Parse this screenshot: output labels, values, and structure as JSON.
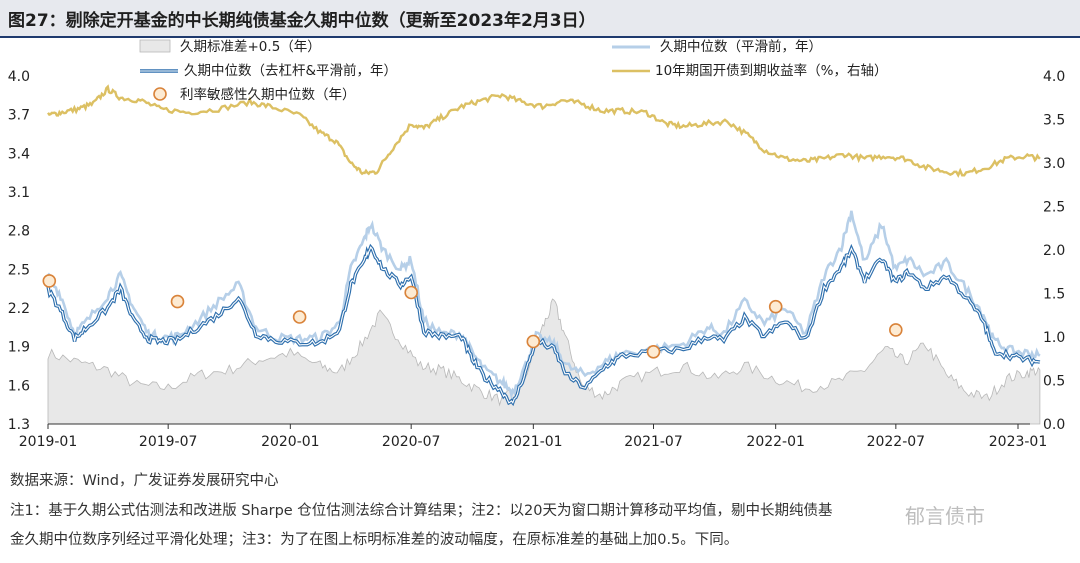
{
  "title": "图27：剔除定开基金的中长期纯债基金久期中位数（更新至2023年2月3日）",
  "footer": {
    "source": "数据来源：Wind，广发证券发展研究中心",
    "note_line1": "注1：基于久期公式估测法和改进版 Sharpe 仓位估测法综合计算结果；注2：以20天为窗口期计算移动平均值，剔中长期纯债基",
    "note_line2": "金久期中位数序列经过平滑化处理；注3：为了在图上标明标准差的波动幅度，在原标准差的基础上加0.5。下同。"
  },
  "watermark": "郁言债市",
  "colors": {
    "std_fill": "#e8e8e8",
    "std_stroke": "#b8b8b8",
    "unsmoothed": "#b6cfe8",
    "smoothed": "#2e6fad",
    "yield": "#dcc063",
    "sensitivity_stroke": "#d9833a",
    "sensitivity_fill": "#fdebd3",
    "title_band": "#e7e9ee",
    "title_rule": "#1f3a6e"
  },
  "chart_data": {
    "type": "line",
    "x_ticks": [
      "2019-01",
      "2019-07",
      "2020-01",
      "2020-07",
      "2021-01",
      "2021-07",
      "2022-01",
      "2022-07",
      "2023-01"
    ],
    "x_range": [
      "2019-01-01",
      "2023-02-03"
    ],
    "y_left": {
      "min": 1.3,
      "max": 4.0,
      "ticks": [
        "1.3",
        "1.6",
        "1.9",
        "2.2",
        "2.5",
        "2.8",
        "3.1",
        "3.4",
        "3.7",
        "4.0"
      ]
    },
    "y_right": {
      "min": 0.0,
      "max": 4.0,
      "ticks": [
        "0.0",
        "0.5",
        "1.0",
        "1.5",
        "2.0",
        "2.5",
        "3.0",
        "3.5",
        "4.0"
      ]
    },
    "legend": [
      {
        "key": "std",
        "label": "久期标准差+0.5（年）"
      },
      {
        "key": "unsmoothed",
        "label": "久期中位数（平滑前，年）"
      },
      {
        "key": "smoothed",
        "label": "久期中位数（去杠杆&平滑前，年）"
      },
      {
        "key": "yield",
        "label": "10年期国开债到期收益率（%，右轴）"
      },
      {
        "key": "sensitivity",
        "label": "利率敏感性久期中位数（年）"
      }
    ],
    "series": [
      {
        "key": "std",
        "axis": "left",
        "points": [
          [
            "2019-01-01",
            1.85
          ],
          [
            "2019-02-15",
            1.78
          ],
          [
            "2019-04-01",
            1.72
          ],
          [
            "2019-05-15",
            1.6
          ],
          [
            "2019-07-01",
            1.58
          ],
          [
            "2019-08-15",
            1.68
          ],
          [
            "2019-10-01",
            1.72
          ],
          [
            "2019-11-15",
            1.8
          ],
          [
            "2020-01-01",
            1.85
          ],
          [
            "2020-02-15",
            1.75
          ],
          [
            "2020-03-15",
            1.7
          ],
          [
            "2020-04-15",
            1.9
          ],
          [
            "2020-05-15",
            2.15
          ],
          [
            "2020-06-15",
            1.95
          ],
          [
            "2020-07-15",
            1.75
          ],
          [
            "2020-08-15",
            1.72
          ],
          [
            "2020-09-15",
            1.64
          ],
          [
            "2020-10-15",
            1.55
          ],
          [
            "2020-11-15",
            1.48
          ],
          [
            "2020-12-15",
            1.6
          ],
          [
            "2021-01-15",
            2.05
          ],
          [
            "2021-02-01",
            2.25
          ],
          [
            "2021-02-20",
            1.95
          ],
          [
            "2021-03-15",
            1.6
          ],
          [
            "2021-04-15",
            1.52
          ],
          [
            "2021-05-15",
            1.62
          ],
          [
            "2021-07-01",
            1.7
          ],
          [
            "2021-08-15",
            1.75
          ],
          [
            "2021-10-01",
            1.65
          ],
          [
            "2021-11-15",
            1.75
          ],
          [
            "2022-01-01",
            1.65
          ],
          [
            "2022-02-15",
            1.58
          ],
          [
            "2022-04-01",
            1.62
          ],
          [
            "2022-05-15",
            1.72
          ],
          [
            "2022-06-15",
            1.88
          ],
          [
            "2022-07-15",
            1.78
          ],
          [
            "2022-08-15",
            1.92
          ],
          [
            "2022-09-15",
            1.68
          ],
          [
            "2022-10-15",
            1.55
          ],
          [
            "2022-11-15",
            1.5
          ],
          [
            "2022-12-15",
            1.65
          ],
          [
            "2023-01-15",
            1.7
          ],
          [
            "2023-02-03",
            1.72
          ]
        ]
      },
      {
        "key": "unsmoothed",
        "axis": "left",
        "points": [
          [
            "2019-01-01",
            2.45
          ],
          [
            "2019-01-20",
            2.3
          ],
          [
            "2019-02-10",
            2.0
          ],
          [
            "2019-03-01",
            2.1
          ],
          [
            "2019-04-01",
            2.3
          ],
          [
            "2019-04-20",
            2.45
          ],
          [
            "2019-05-10",
            2.2
          ],
          [
            "2019-06-01",
            2.0
          ],
          [
            "2019-06-20",
            1.97
          ],
          [
            "2019-07-15",
            1.98
          ],
          [
            "2019-08-15",
            2.1
          ],
          [
            "2019-09-15",
            2.25
          ],
          [
            "2019-10-15",
            2.38
          ],
          [
            "2019-11-10",
            2.05
          ],
          [
            "2019-12-10",
            1.97
          ],
          [
            "2020-01-15",
            1.96
          ],
          [
            "2020-02-15",
            1.97
          ],
          [
            "2020-03-15",
            2.08
          ],
          [
            "2020-04-01",
            2.5
          ],
          [
            "2020-04-20",
            2.72
          ],
          [
            "2020-05-01",
            2.85
          ],
          [
            "2020-05-20",
            2.65
          ],
          [
            "2020-06-15",
            2.5
          ],
          [
            "2020-07-01",
            2.58
          ],
          [
            "2020-07-20",
            2.1
          ],
          [
            "2020-08-15",
            2.0
          ],
          [
            "2020-09-15",
            2.0
          ],
          [
            "2020-10-01",
            1.85
          ],
          [
            "2020-10-20",
            1.72
          ],
          [
            "2020-11-15",
            1.62
          ],
          [
            "2020-12-01",
            1.55
          ],
          [
            "2020-12-20",
            1.75
          ],
          [
            "2021-01-05",
            1.98
          ],
          [
            "2021-02-01",
            1.92
          ],
          [
            "2021-02-20",
            1.75
          ],
          [
            "2021-03-20",
            1.68
          ],
          [
            "2021-04-20",
            1.78
          ],
          [
            "2021-05-15",
            1.85
          ],
          [
            "2021-07-01",
            1.88
          ],
          [
            "2021-08-15",
            1.92
          ],
          [
            "2021-09-20",
            2.05
          ],
          [
            "2021-10-15",
            2.0
          ],
          [
            "2021-11-15",
            2.25
          ],
          [
            "2021-12-15",
            2.08
          ],
          [
            "2022-01-15",
            2.2
          ],
          [
            "2022-02-15",
            2.0
          ],
          [
            "2022-03-15",
            2.45
          ],
          [
            "2022-04-10",
            2.68
          ],
          [
            "2022-04-25",
            2.95
          ],
          [
            "2022-05-15",
            2.55
          ],
          [
            "2022-06-10",
            2.85
          ],
          [
            "2022-06-30",
            2.5
          ],
          [
            "2022-07-20",
            2.58
          ],
          [
            "2022-08-15",
            2.45
          ],
          [
            "2022-09-15",
            2.55
          ],
          [
            "2022-10-15",
            2.35
          ],
          [
            "2022-11-10",
            2.15
          ],
          [
            "2022-11-25",
            1.95
          ],
          [
            "2022-12-20",
            1.87
          ],
          [
            "2023-01-15",
            1.85
          ],
          [
            "2023-02-03",
            1.83
          ]
        ]
      },
      {
        "key": "smoothed",
        "axis": "left",
        "points": [
          [
            "2019-01-01",
            2.35
          ],
          [
            "2019-01-20",
            2.18
          ],
          [
            "2019-02-10",
            1.96
          ],
          [
            "2019-03-01",
            2.05
          ],
          [
            "2019-04-01",
            2.2
          ],
          [
            "2019-04-20",
            2.35
          ],
          [
            "2019-05-10",
            2.1
          ],
          [
            "2019-06-01",
            1.96
          ],
          [
            "2019-06-20",
            1.94
          ],
          [
            "2019-07-15",
            1.95
          ],
          [
            "2019-08-15",
            2.05
          ],
          [
            "2019-09-15",
            2.15
          ],
          [
            "2019-10-15",
            2.28
          ],
          [
            "2019-11-10",
            2.0
          ],
          [
            "2019-12-10",
            1.95
          ],
          [
            "2020-01-15",
            1.93
          ],
          [
            "2020-02-15",
            1.93
          ],
          [
            "2020-03-15",
            2.03
          ],
          [
            "2020-04-01",
            2.38
          ],
          [
            "2020-04-20",
            2.55
          ],
          [
            "2020-05-01",
            2.68
          ],
          [
            "2020-05-20",
            2.5
          ],
          [
            "2020-06-15",
            2.38
          ],
          [
            "2020-07-01",
            2.45
          ],
          [
            "2020-07-20",
            2.02
          ],
          [
            "2020-08-15",
            1.98
          ],
          [
            "2020-09-15",
            1.98
          ],
          [
            "2020-10-01",
            1.8
          ],
          [
            "2020-10-20",
            1.66
          ],
          [
            "2020-11-15",
            1.55
          ],
          [
            "2020-12-01",
            1.45
          ],
          [
            "2020-12-20",
            1.7
          ],
          [
            "2021-01-05",
            1.95
          ],
          [
            "2021-02-01",
            1.88
          ],
          [
            "2021-02-20",
            1.68
          ],
          [
            "2021-03-20",
            1.58
          ],
          [
            "2021-04-20",
            1.75
          ],
          [
            "2021-05-15",
            1.83
          ],
          [
            "2021-07-01",
            1.86
          ],
          [
            "2021-08-15",
            1.88
          ],
          [
            "2021-09-20",
            1.98
          ],
          [
            "2021-10-15",
            1.95
          ],
          [
            "2021-11-15",
            2.12
          ],
          [
            "2021-12-15",
            1.98
          ],
          [
            "2022-01-15",
            2.1
          ],
          [
            "2022-02-15",
            1.95
          ],
          [
            "2022-03-15",
            2.35
          ],
          [
            "2022-04-10",
            2.52
          ],
          [
            "2022-04-25",
            2.65
          ],
          [
            "2022-05-15",
            2.42
          ],
          [
            "2022-06-10",
            2.58
          ],
          [
            "2022-06-30",
            2.4
          ],
          [
            "2022-07-20",
            2.48
          ],
          [
            "2022-08-15",
            2.35
          ],
          [
            "2022-09-15",
            2.45
          ],
          [
            "2022-10-15",
            2.28
          ],
          [
            "2022-11-10",
            2.1
          ],
          [
            "2022-11-25",
            1.87
          ],
          [
            "2022-12-20",
            1.83
          ],
          [
            "2023-01-15",
            1.8
          ],
          [
            "2023-02-03",
            1.78
          ]
        ]
      },
      {
        "key": "yield",
        "axis": "right",
        "points": [
          [
            "2019-01-01",
            3.55
          ],
          [
            "2019-01-20",
            3.58
          ],
          [
            "2019-02-15",
            3.62
          ],
          [
            "2019-03-10",
            3.68
          ],
          [
            "2019-04-01",
            3.85
          ],
          [
            "2019-04-20",
            3.75
          ],
          [
            "2019-05-20",
            3.72
          ],
          [
            "2019-06-20",
            3.62
          ],
          [
            "2019-08-01",
            3.58
          ],
          [
            "2019-09-15",
            3.62
          ],
          [
            "2019-11-01",
            3.7
          ],
          [
            "2019-12-01",
            3.65
          ],
          [
            "2020-01-15",
            3.55
          ],
          [
            "2020-02-15",
            3.35
          ],
          [
            "2020-03-10",
            3.25
          ],
          [
            "2020-04-01",
            3.0
          ],
          [
            "2020-04-20",
            2.88
          ],
          [
            "2020-05-10",
            2.9
          ],
          [
            "2020-06-01",
            3.15
          ],
          [
            "2020-07-01",
            3.45
          ],
          [
            "2020-07-20",
            3.4
          ],
          [
            "2020-08-15",
            3.52
          ],
          [
            "2020-09-15",
            3.65
          ],
          [
            "2020-10-15",
            3.72
          ],
          [
            "2020-11-15",
            3.78
          ],
          [
            "2020-12-15",
            3.7
          ],
          [
            "2021-01-15",
            3.65
          ],
          [
            "2021-02-15",
            3.72
          ],
          [
            "2021-03-15",
            3.68
          ],
          [
            "2021-04-15",
            3.6
          ],
          [
            "2021-05-15",
            3.6
          ],
          [
            "2021-06-20",
            3.58
          ],
          [
            "2021-07-20",
            3.45
          ],
          [
            "2021-08-15",
            3.42
          ],
          [
            "2021-09-15",
            3.45
          ],
          [
            "2021-10-20",
            3.48
          ],
          [
            "2021-11-20",
            3.32
          ],
          [
            "2021-12-15",
            3.15
          ],
          [
            "2022-01-15",
            3.05
          ],
          [
            "2022-02-15",
            3.02
          ],
          [
            "2022-03-15",
            3.05
          ],
          [
            "2022-04-15",
            3.1
          ],
          [
            "2022-05-15",
            3.05
          ],
          [
            "2022-06-15",
            3.08
          ],
          [
            "2022-07-15",
            3.05
          ],
          [
            "2022-08-15",
            2.95
          ],
          [
            "2022-09-15",
            2.9
          ],
          [
            "2022-10-15",
            2.88
          ],
          [
            "2022-11-15",
            2.95
          ],
          [
            "2022-12-15",
            3.05
          ],
          [
            "2023-01-15",
            3.08
          ],
          [
            "2023-02-03",
            3.05
          ]
        ]
      }
    ],
    "markers": {
      "key": "sensitivity",
      "axis": "left",
      "points": [
        [
          "2019-01-03",
          2.41
        ],
        [
          "2019-07-15",
          2.25
        ],
        [
          "2020-01-15",
          2.13
        ],
        [
          "2020-07-01",
          2.32
        ],
        [
          "2021-01-01",
          1.94
        ],
        [
          "2021-07-01",
          1.86
        ],
        [
          "2022-01-01",
          2.21
        ],
        [
          "2022-07-01",
          2.03
        ]
      ]
    }
  }
}
